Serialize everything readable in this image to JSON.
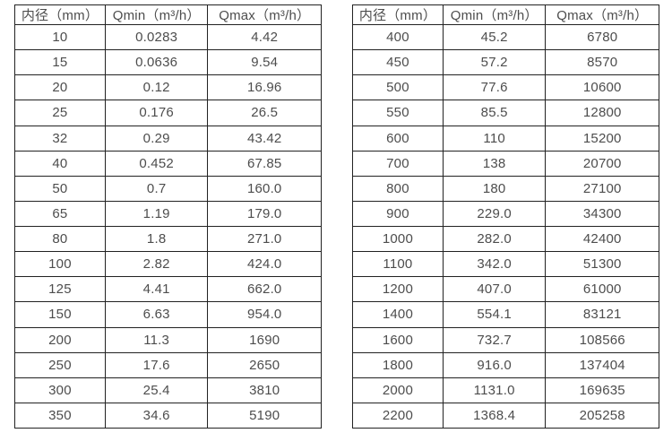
{
  "colors": {
    "background": "#ffffff",
    "border": "#222222",
    "text": "#4d4d4d"
  },
  "tables": [
    {
      "name": "flow-table-small-diameters",
      "headers": [
        "内径（mm）",
        "Qmin（m³/h）",
        "Qmax（m³/h）"
      ],
      "rows": [
        [
          "10",
          "0.0283",
          "4.42"
        ],
        [
          "15",
          "0.0636",
          "9.54"
        ],
        [
          "20",
          "0.12",
          "16.96"
        ],
        [
          "25",
          "0.176",
          "26.5"
        ],
        [
          "32",
          "0.29",
          "43.42"
        ],
        [
          "40",
          "0.452",
          "67.85"
        ],
        [
          "50",
          "0.7",
          "160.0"
        ],
        [
          "65",
          "1.19",
          "179.0"
        ],
        [
          "80",
          "1.8",
          "271.0"
        ],
        [
          "100",
          "2.82",
          "424.0"
        ],
        [
          "125",
          "4.41",
          "662.0"
        ],
        [
          "150",
          "6.63",
          "954.0"
        ],
        [
          "200",
          "11.3",
          "1690"
        ],
        [
          "250",
          "17.6",
          "2650"
        ],
        [
          "300",
          "25.4",
          "3810"
        ],
        [
          "350",
          "34.6",
          "5190"
        ]
      ]
    },
    {
      "name": "flow-table-large-diameters",
      "headers": [
        "内径（mm）",
        "Qmin（m³/h）",
        "Qmax（m³/h）"
      ],
      "rows": [
        [
          "400",
          "45.2",
          "6780"
        ],
        [
          "450",
          "57.2",
          "8570"
        ],
        [
          "500",
          "77.6",
          "10600"
        ],
        [
          "550",
          "85.5",
          "12800"
        ],
        [
          "600",
          "110",
          "15200"
        ],
        [
          "700",
          "138",
          "20700"
        ],
        [
          "800",
          "180",
          "27100"
        ],
        [
          "900",
          "229.0",
          "34300"
        ],
        [
          "1000",
          "282.0",
          "42400"
        ],
        [
          "1100",
          "342.0",
          "51300"
        ],
        [
          "1200",
          "407.0",
          "61000"
        ],
        [
          "1400",
          "554.1",
          "83121"
        ],
        [
          "1600",
          "732.7",
          "108566"
        ],
        [
          "1800",
          "916.0",
          "137404"
        ],
        [
          "2000",
          "1131.0",
          "169635"
        ],
        [
          "2200",
          "1368.4",
          "205258"
        ]
      ]
    }
  ]
}
